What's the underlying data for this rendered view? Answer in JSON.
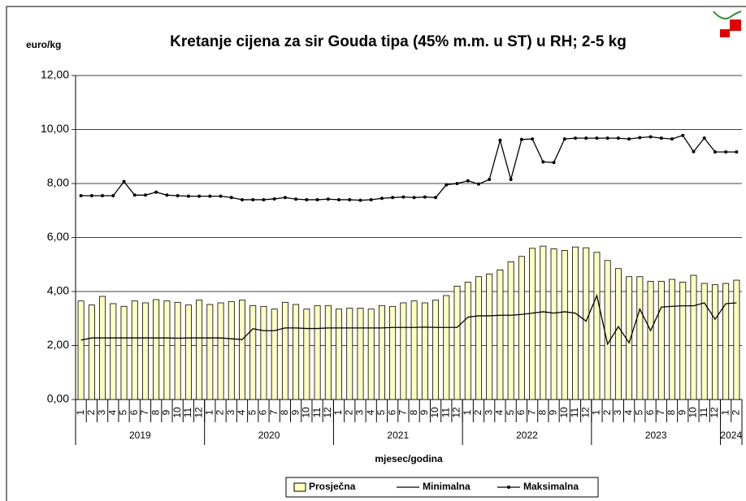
{
  "chart_data": {
    "type": "bar_line",
    "title": "Kretanje cijena za sir Gouda tipa  (45% m.m. u ST) u RH; 2-5 kg",
    "y_label": "euro/kg",
    "x_label": "mjesec/godina",
    "categories": [
      "1",
      "2",
      "3",
      "4",
      "5",
      "6",
      "7",
      "8",
      "9",
      "10",
      "11",
      "12",
      "1",
      "2",
      "3",
      "4",
      "5",
      "6",
      "7",
      "8",
      "9",
      "10",
      "11",
      "12",
      "1",
      "2",
      "3",
      "4",
      "5",
      "6",
      "7",
      "8",
      "9",
      "10",
      "11",
      "12",
      "1",
      "2",
      "3",
      "4",
      "5",
      "6",
      "7",
      "8",
      "9",
      "10",
      "11",
      "12",
      "1",
      "2",
      "3",
      "4",
      "5",
      "6",
      "7",
      "8",
      "9",
      "10",
      "11",
      "12",
      "1",
      "2"
    ],
    "groups": [
      "2019",
      "2020",
      "2021",
      "2022",
      "2023",
      "2024"
    ],
    "series": [
      {
        "name": "Prosječna",
        "kind": "bar",
        "color": "#ffffc0",
        "values": [
          3.65,
          3.5,
          3.82,
          3.55,
          3.45,
          3.65,
          3.58,
          3.7,
          3.65,
          3.6,
          3.5,
          3.68,
          3.52,
          3.58,
          3.63,
          3.68,
          3.48,
          3.45,
          3.35,
          3.6,
          3.52,
          3.35,
          3.48,
          3.48,
          3.35,
          3.38,
          3.38,
          3.35,
          3.48,
          3.45,
          3.58,
          3.65,
          3.58,
          3.68,
          3.85,
          4.2,
          4.35,
          4.55,
          4.65,
          4.8,
          5.1,
          5.3,
          5.6,
          5.68,
          5.58,
          5.52,
          5.65,
          5.62,
          5.45,
          5.15,
          4.85,
          4.55,
          4.55,
          4.38,
          4.38,
          4.45,
          4.35,
          4.6,
          4.3,
          4.25,
          4.3,
          4.42
        ]
      },
      {
        "name": "Minimalna",
        "kind": "line",
        "color": "#000000",
        "values": [
          2.2,
          2.28,
          2.28,
          2.28,
          2.28,
          2.28,
          2.28,
          2.28,
          2.28,
          2.27,
          2.28,
          2.28,
          2.28,
          2.28,
          2.25,
          2.22,
          2.62,
          2.55,
          2.55,
          2.65,
          2.65,
          2.63,
          2.63,
          2.65,
          2.65,
          2.65,
          2.65,
          2.65,
          2.65,
          2.67,
          2.67,
          2.67,
          2.68,
          2.67,
          2.67,
          2.67,
          3.05,
          3.1,
          3.1,
          3.12,
          3.12,
          3.15,
          3.2,
          3.25,
          3.2,
          3.25,
          3.2,
          2.9,
          3.85,
          2.05,
          2.7,
          2.1,
          3.35,
          2.55,
          3.42,
          3.45,
          3.47,
          3.47,
          3.58,
          2.97,
          3.55,
          3.58
        ]
      },
      {
        "name": "Maksimalna",
        "kind": "line",
        "marker": "circle",
        "color": "#000000",
        "values": [
          7.55,
          7.55,
          7.55,
          7.55,
          8.07,
          7.57,
          7.57,
          7.68,
          7.57,
          7.55,
          7.53,
          7.53,
          7.53,
          7.53,
          7.48,
          7.4,
          7.4,
          7.4,
          7.43,
          7.48,
          7.42,
          7.4,
          7.4,
          7.42,
          7.4,
          7.4,
          7.38,
          7.4,
          7.45,
          7.48,
          7.5,
          7.48,
          7.5,
          7.48,
          7.95,
          8.0,
          8.1,
          7.98,
          8.15,
          9.6,
          8.15,
          9.63,
          9.65,
          8.8,
          8.78,
          9.65,
          9.68,
          9.68,
          9.68,
          9.68,
          9.68,
          9.65,
          9.7,
          9.73,
          9.68,
          9.65,
          9.78,
          9.18,
          9.68,
          9.17,
          9.17,
          9.17
        ]
      }
    ],
    "ylim": [
      0,
      12
    ],
    "yticks": [
      {
        "value": 0,
        "label": "0,00"
      },
      {
        "value": 2,
        "label": "2,00"
      },
      {
        "value": 4,
        "label": "4,00"
      },
      {
        "value": 6,
        "label": "6,00"
      },
      {
        "value": 8,
        "label": "8,00"
      },
      {
        "value": 10,
        "label": "10,00"
      },
      {
        "value": 12,
        "label": "12,00"
      }
    ],
    "grid": true,
    "legend": "bottom"
  }
}
